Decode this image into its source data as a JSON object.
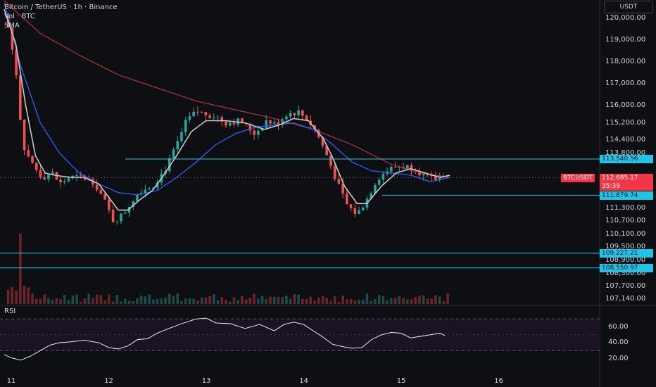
{
  "legend": {
    "symbol": "Bitcoin / TetherUS · 1h · Binance",
    "volume": "Vol · BTC",
    "sma": "SMA"
  },
  "currency": "USDT",
  "rsi_label": "RSI",
  "price_tag": {
    "symbol": "BTCUSDT",
    "price": "112,685.17",
    "countdown": "35:39"
  },
  "colors": {
    "background": "#0e0f13",
    "up": "#26a69a",
    "down": "#ef5350",
    "level": "#22c3e6",
    "sma_fast": "#c8c8c8",
    "sma_mid": "#2962ff",
    "sma_slow": "#b2343a",
    "rsi": "#ffffff",
    "tag": "#f23645"
  },
  "chart_data": {
    "type": "candlestick",
    "x_axis": {
      "ticks": [
        "11",
        "12",
        "13",
        "14",
        "15",
        "16"
      ]
    },
    "y_axis": {
      "range": [
        106900,
        120700
      ],
      "ticks": [
        "120,000.00",
        "119,000.00",
        "118,000.00",
        "117,000.00",
        "116,000.00",
        "115,200.00",
        "114,400.00",
        "113,800.00",
        "111,300.00",
        "110,700.00",
        "110,100.00",
        "109,500.00",
        "108,900.00",
        "108,300.00",
        "107,700.00",
        "107,140.00"
      ],
      "tick_values": [
        120000,
        119000,
        118000,
        117000,
        116000,
        115200,
        114400,
        113800,
        111300,
        110700,
        110100,
        109500,
        108900,
        108300,
        107700,
        107140
      ]
    },
    "levels": [
      {
        "value": 113540.56,
        "label": "113,540.56"
      },
      {
        "value": 111879.74,
        "label": "111,879.74"
      },
      {
        "value": 109227.21,
        "label": "109,227.21"
      },
      {
        "value": 108550.97,
        "label": "108,550.97"
      }
    ],
    "last_price": 112685.17,
    "price_path": [
      [
        10.93,
        120600
      ],
      [
        11.05,
        117600
      ],
      [
        11.12,
        114200
      ],
      [
        11.22,
        113300
      ],
      [
        11.32,
        112700
      ],
      [
        11.42,
        112900
      ],
      [
        11.5,
        112400
      ],
      [
        11.6,
        112700
      ],
      [
        11.72,
        112700
      ],
      [
        11.85,
        112500
      ],
      [
        11.95,
        111700
      ],
      [
        12.05,
        110700
      ],
      [
        12.15,
        111000
      ],
      [
        12.25,
        111700
      ],
      [
        12.32,
        112100
      ],
      [
        12.45,
        112300
      ],
      [
        12.6,
        113200
      ],
      [
        12.72,
        114400
      ],
      [
        12.8,
        115300
      ],
      [
        12.9,
        115700
      ],
      [
        13.0,
        115600
      ],
      [
        13.1,
        115500
      ],
      [
        13.2,
        115200
      ],
      [
        13.35,
        115300
      ],
      [
        13.5,
        114700
      ],
      [
        13.62,
        115300
      ],
      [
        13.72,
        115100
      ],
      [
        13.82,
        115600
      ],
      [
        13.95,
        115700
      ],
      [
        14.05,
        115300
      ],
      [
        14.15,
        114600
      ],
      [
        14.25,
        113600
      ],
      [
        14.35,
        112400
      ],
      [
        14.45,
        111400
      ],
      [
        14.55,
        111000
      ],
      [
        14.65,
        111700
      ],
      [
        14.75,
        112600
      ],
      [
        14.85,
        113000
      ],
      [
        14.95,
        113200
      ],
      [
        15.05,
        113200
      ],
      [
        15.15,
        113100
      ],
      [
        15.25,
        112700
      ],
      [
        15.35,
        112600
      ],
      [
        15.45,
        112900
      ],
      [
        15.5,
        112685
      ]
    ],
    "sma_fast": [
      [
        10.93,
        120400
      ],
      [
        11.05,
        118800
      ],
      [
        11.15,
        116000
      ],
      [
        11.25,
        113700
      ],
      [
        11.35,
        112900
      ],
      [
        11.45,
        112800
      ],
      [
        11.6,
        112700
      ],
      [
        11.75,
        112700
      ],
      [
        11.9,
        112400
      ],
      [
        12.0,
        111800
      ],
      [
        12.1,
        111200
      ],
      [
        12.2,
        111200
      ],
      [
        12.3,
        111600
      ],
      [
        12.45,
        112100
      ],
      [
        12.55,
        112700
      ],
      [
        12.7,
        113700
      ],
      [
        12.85,
        114800
      ],
      [
        13.0,
        115300
      ],
      [
        13.2,
        115300
      ],
      [
        13.4,
        115200
      ],
      [
        13.6,
        114900
      ],
      [
        13.75,
        115100
      ],
      [
        13.9,
        115400
      ],
      [
        14.05,
        115300
      ],
      [
        14.2,
        114500
      ],
      [
        14.3,
        113600
      ],
      [
        14.42,
        112300
      ],
      [
        14.55,
        111500
      ],
      [
        14.65,
        111500
      ],
      [
        14.8,
        112300
      ],
      [
        14.95,
        112900
      ],
      [
        15.1,
        113100
      ],
      [
        15.25,
        112900
      ],
      [
        15.4,
        112700
      ],
      [
        15.5,
        112800
      ]
    ],
    "sma_mid": [
      [
        10.93,
        120700
      ],
      [
        11.1,
        117800
      ],
      [
        11.3,
        115200
      ],
      [
        11.5,
        113800
      ],
      [
        11.7,
        112900
      ],
      [
        11.9,
        112400
      ],
      [
        12.1,
        112000
      ],
      [
        12.3,
        111900
      ],
      [
        12.5,
        112100
      ],
      [
        12.7,
        112700
      ],
      [
        12.9,
        113400
      ],
      [
        13.1,
        114200
      ],
      [
        13.3,
        114700
      ],
      [
        13.5,
        115000
      ],
      [
        13.7,
        115100
      ],
      [
        13.9,
        115200
      ],
      [
        14.1,
        114900
      ],
      [
        14.3,
        114200
      ],
      [
        14.5,
        113400
      ],
      [
        14.7,
        113000
      ],
      [
        14.9,
        112900
      ],
      [
        15.1,
        112800
      ],
      [
        15.3,
        112500
      ],
      [
        15.5,
        112700
      ]
    ],
    "sma_slow": [
      [
        10.93,
        120800
      ],
      [
        11.3,
        119300
      ],
      [
        11.7,
        118300
      ],
      [
        12.1,
        117400
      ],
      [
        12.5,
        116800
      ],
      [
        12.9,
        116200
      ],
      [
        13.3,
        115800
      ],
      [
        13.7,
        115400
      ],
      [
        14.1,
        114900
      ],
      [
        14.5,
        114200
      ],
      [
        14.9,
        113300
      ],
      [
        15.2,
        112900
      ],
      [
        15.5,
        112700
      ]
    ],
    "rsi": {
      "axis_ticks": [
        "60.00",
        "40.00",
        "20.00"
      ],
      "tick_values": [
        60,
        40,
        20
      ],
      "bands": [
        70,
        30
      ],
      "path": [
        [
          10.93,
          25
        ],
        [
          11.0,
          21
        ],
        [
          11.1,
          18
        ],
        [
          11.2,
          23
        ],
        [
          11.3,
          30
        ],
        [
          11.4,
          37
        ],
        [
          11.5,
          40
        ],
        [
          11.6,
          41
        ],
        [
          11.75,
          43
        ],
        [
          11.9,
          40
        ],
        [
          12.0,
          34
        ],
        [
          12.1,
          32
        ],
        [
          12.2,
          36
        ],
        [
          12.3,
          44
        ],
        [
          12.4,
          45
        ],
        [
          12.5,
          52
        ],
        [
          12.62,
          58
        ],
        [
          12.75,
          64
        ],
        [
          12.9,
          70
        ],
        [
          13.0,
          71
        ],
        [
          13.1,
          65
        ],
        [
          13.25,
          64
        ],
        [
          13.4,
          58
        ],
        [
          13.55,
          63
        ],
        [
          13.7,
          55
        ],
        [
          13.8,
          63
        ],
        [
          13.9,
          66
        ],
        [
          14.0,
          63
        ],
        [
          14.1,
          55
        ],
        [
          14.2,
          47
        ],
        [
          14.3,
          38
        ],
        [
          14.4,
          35
        ],
        [
          14.5,
          33
        ],
        [
          14.6,
          34
        ],
        [
          14.7,
          44
        ],
        [
          14.8,
          50
        ],
        [
          14.9,
          53
        ],
        [
          15.0,
          52
        ],
        [
          15.1,
          46
        ],
        [
          15.2,
          48
        ],
        [
          15.3,
          50
        ],
        [
          15.4,
          52
        ],
        [
          15.45,
          49
        ]
      ]
    }
  }
}
